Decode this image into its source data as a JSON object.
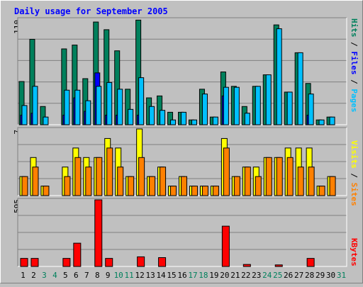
{
  "title": "Daily usage for September 2005",
  "colors": {
    "background": "#c0c0c0",
    "title": "#0000ff",
    "hits": "#00805c",
    "files": "#0000ff",
    "pages": "#00c0ff",
    "visits": "#ffff00",
    "sites": "#ff8000",
    "kbytes": "#ff0000",
    "weekend_label": "#00805c",
    "weekday_label": "#000000"
  },
  "chart_data": {
    "type": "bar",
    "categories": [
      "1",
      "2",
      "3",
      "4",
      "5",
      "6",
      "7",
      "8",
      "9",
      "10",
      "11",
      "12",
      "13",
      "14",
      "15",
      "16",
      "17",
      "18",
      "19",
      "20",
      "21",
      "22",
      "23",
      "24",
      "25",
      "26",
      "27",
      "28",
      "29",
      "30",
      "31"
    ],
    "weekend_days": [
      "3",
      "4",
      "10",
      "11",
      "17",
      "18",
      "24",
      "25",
      "31"
    ],
    "panels": [
      {
        "id": "hits-files-pages",
        "ymax_label": "110",
        "ylim": [
          0,
          110
        ],
        "grid": true,
        "legend": [
          "Hits",
          "Files",
          "Pages"
        ],
        "series": [
          {
            "name": "Hits",
            "values": [
              45,
              89,
              19,
              0,
              79,
              83,
              48,
              107,
              99,
              77,
              37,
              109,
              28,
              30,
              13,
              13,
              5,
              37,
              8,
              55,
              40,
              19,
              40,
              52,
              104,
              34,
              75,
              43,
              5,
              8,
              0
            ]
          },
          {
            "name": "Files",
            "values": [
              10,
              12,
              0,
              0,
              10,
              28,
              14,
              54,
              10,
              10,
              0,
              10,
              0,
              0,
              0,
              0,
              0,
              0,
              0,
              30,
              0,
              0,
              0,
              0,
              0,
              0,
              0,
              10,
              0,
              0,
              0
            ]
          },
          {
            "name": "Pages",
            "values": [
              20,
              40,
              8,
              0,
              36,
              36,
              25,
              40,
              44,
              37,
              16,
              49,
              19,
              15,
              5,
              13,
              5,
              32,
              8,
              39,
              39,
              12,
              40,
              52,
              100,
              34,
              75,
              32,
              5,
              8,
              0
            ]
          }
        ]
      },
      {
        "id": "visits-sites",
        "ymax_label": "7",
        "ylim": [
          0,
          7
        ],
        "grid": true,
        "legend": [
          "Visits",
          "Sites"
        ],
        "series": [
          {
            "name": "Visits",
            "values": [
              2,
              4,
              1,
              0,
              3,
              5,
              4,
              4,
              6,
              5,
              2,
              7,
              2,
              3,
              1,
              2,
              1,
              1,
              1,
              6,
              2,
              3,
              3,
              4,
              4,
              5,
              5,
              5,
              1,
              2,
              0
            ]
          },
          {
            "name": "Sites",
            "values": [
              2,
              3,
              1,
              0,
              2,
              4,
              3,
              4,
              5,
              3,
              2,
              4,
              2,
              3,
              1,
              2,
              1,
              1,
              1,
              5,
              2,
              3,
              2,
              4,
              4,
              4,
              3,
              3,
              1,
              2,
              0
            ]
          }
        ]
      },
      {
        "id": "kbytes",
        "ymax_label": "595",
        "ylim": [
          0,
          595
        ],
        "grid": true,
        "legend": [
          "KBytes"
        ],
        "series": [
          {
            "name": "KBytes",
            "values": [
              72,
              72,
              0,
              0,
              72,
              208,
              0,
              595,
              72,
              0,
              0,
              86,
              0,
              79,
              0,
              0,
              0,
              0,
              0,
              360,
              0,
              18,
              0,
              0,
              14,
              0,
              0,
              72,
              0,
              0,
              0
            ]
          }
        ]
      }
    ]
  }
}
